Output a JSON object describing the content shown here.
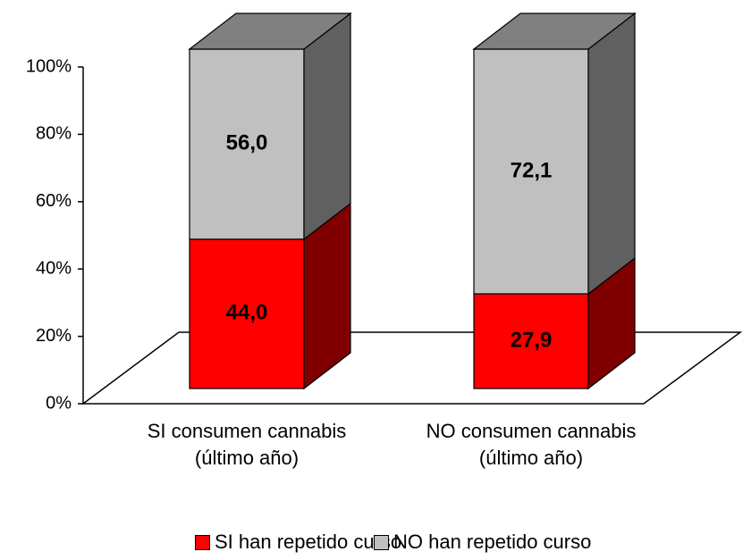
{
  "chart_data": {
    "type": "stacked_bar_3d",
    "categories": [
      "SI consumen cannabis (último año)",
      "NO consumen cannabis (último año)"
    ],
    "series": [
      {
        "name": "SI han repetido curso",
        "color": "#ff0000",
        "values": [
          44.0,
          27.9
        ],
        "value_labels": [
          "44,0",
          "27,9"
        ]
      },
      {
        "name": "NO han repetido curso",
        "color": "#c0c0c0",
        "values": [
          56.0,
          72.1
        ],
        "value_labels": [
          "56,0",
          "72,1"
        ]
      }
    ],
    "ylim": [
      0,
      100
    ],
    "yticks": [
      {
        "value": 0,
        "label": "0%"
      },
      {
        "value": 20,
        "label": "20%"
      },
      {
        "value": 40,
        "label": "40%"
      },
      {
        "value": 60,
        "label": "60%"
      },
      {
        "value": 80,
        "label": "80%"
      },
      {
        "value": 100,
        "label": "100%"
      }
    ],
    "legend": "bottom"
  }
}
